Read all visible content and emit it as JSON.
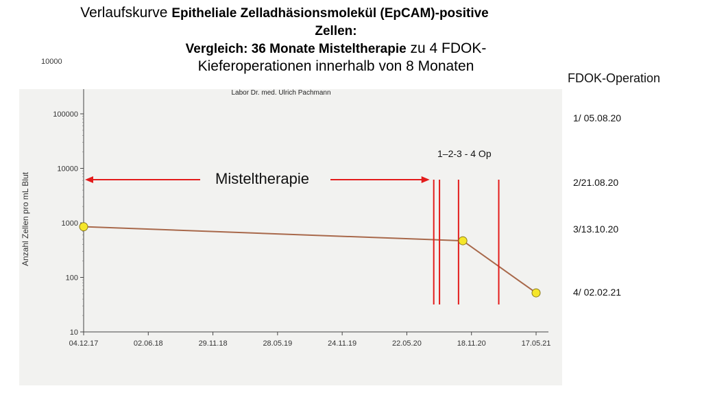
{
  "title": {
    "line1_prefix": "Verlaufskurve ",
    "line1_bold": "Epitheliale Zelladhäsionsmolekül (EpCAM)-positive",
    "line2_bold": "Zellen:",
    "line3_bold": "Vergleich: 36 Monate Misteltherapie",
    "line3_suffix": " zu 4 FDOK-",
    "line4": "Kieferoperationen  innerhalb von 8 Monaten"
  },
  "subtitle": "Labor Dr. med. Ulrich Pachmann",
  "stray_label": "10000",
  "side_panel": {
    "header": "FDOK-Operation",
    "items": [
      "1/ 05.08.20",
      "2/21.08.20",
      "3/13.10.20",
      "4/ 02.02.21"
    ]
  },
  "annotations": {
    "mistel": "Misteltherapie",
    "ops": "1–2-3  -  4 Op"
  },
  "colors": {
    "line": "#a8684a",
    "point": "#f5e62a",
    "marker_red": "#e31b1b"
  },
  "chart_data": {
    "type": "line",
    "ylabel": "Anzahl Zellen pro mL Blut",
    "y_scale": "log",
    "ylim": [
      10,
      100000
    ],
    "y_ticks": [
      10,
      100,
      1000,
      10000,
      100000
    ],
    "y_tick_labels": [
      "10",
      "100",
      "1000",
      "10000",
      "100000"
    ],
    "x_tick_labels": [
      "04.12.17",
      "02.06.18",
      "29.11.18",
      "28.05.19",
      "24.11.19",
      "22.05.20",
      "18.11.20",
      "17.05.21"
    ],
    "x_ticks": [
      "2017-12-04",
      "2018-06-02",
      "2018-11-29",
      "2019-05-28",
      "2019-11-24",
      "2020-05-22",
      "2020-11-18",
      "2021-05-17"
    ],
    "grid": false,
    "series": [
      {
        "points": [
          {
            "x": "2017-12-04",
            "y": 850
          },
          {
            "x": "2020-10-25",
            "y": 470
          },
          {
            "x": "2021-05-17",
            "y": 52
          }
        ]
      }
    ],
    "markers": [
      "2020-08-05",
      "2020-08-21",
      "2020-10-13",
      "2021-02-02"
    ]
  }
}
